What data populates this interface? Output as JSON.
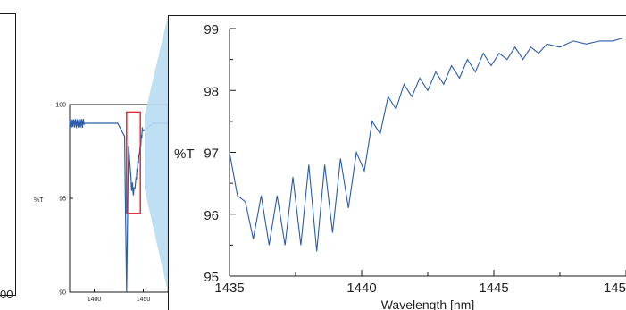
{
  "left_fragment": {
    "tick_label": "00"
  },
  "inset": {
    "y_ticks": [
      "100",
      "95",
      "90"
    ],
    "x_ticks": [
      "1400",
      "1450"
    ],
    "ylabel": "%T",
    "ylim": [
      90,
      100
    ],
    "xlim": [
      1375,
      1475
    ],
    "highlight": {
      "x0": 1433,
      "x1": 1447,
      "y0": 94.2,
      "y1": 99.6,
      "color": "#e03030"
    }
  },
  "colors": {
    "line": "#2a5caa",
    "axes": "#1a1a1a",
    "callout": "#b8ddf2"
  },
  "chart_data": {
    "type": "line",
    "title": "",
    "xlabel": "Wavelength [nm]",
    "ylabel": "%T",
    "xlim": [
      1435,
      1450
    ],
    "ylim": [
      95,
      99
    ],
    "x_ticks": [
      "1435",
      "1440",
      "1445",
      "145"
    ],
    "y_ticks": [
      "95",
      "96",
      "97",
      "98",
      "99"
    ],
    "grid": false,
    "series": [
      {
        "x": [
          1435.0,
          1435.3,
          1435.6,
          1435.9,
          1436.2,
          1436.5,
          1436.8,
          1437.1,
          1437.4,
          1437.7,
          1438.0,
          1438.3,
          1438.6,
          1438.9,
          1439.2,
          1439.5,
          1439.8,
          1440.1,
          1440.4,
          1440.7,
          1441.0,
          1441.3,
          1441.6,
          1441.9,
          1442.2,
          1442.5,
          1442.8,
          1443.1,
          1443.4,
          1443.7,
          1444.0,
          1444.3,
          1444.6,
          1444.9,
          1445.2,
          1445.5,
          1445.8,
          1446.1,
          1446.4,
          1446.7,
          1447.0,
          1447.5,
          1448.0,
          1448.5,
          1449.0,
          1449.5,
          1449.9
        ],
        "y": [
          97.0,
          96.3,
          96.2,
          95.6,
          96.3,
          95.5,
          96.3,
          95.5,
          96.6,
          95.5,
          96.8,
          95.4,
          96.8,
          95.7,
          96.9,
          96.1,
          97.0,
          96.7,
          97.5,
          97.3,
          97.9,
          97.7,
          98.1,
          97.9,
          98.2,
          98.0,
          98.3,
          98.1,
          98.4,
          98.2,
          98.5,
          98.3,
          98.6,
          98.4,
          98.6,
          98.5,
          98.7,
          98.5,
          98.7,
          98.6,
          98.75,
          98.7,
          98.8,
          98.75,
          98.8,
          98.8,
          98.85
        ]
      }
    ]
  }
}
